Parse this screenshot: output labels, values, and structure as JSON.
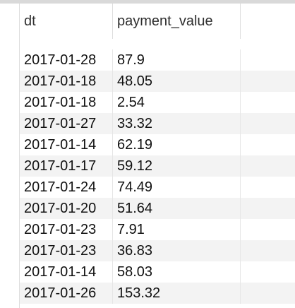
{
  "table": {
    "columns": [
      "dt",
      "payment_value"
    ],
    "rows": [
      [
        "2017-01-28",
        "87.9"
      ],
      [
        "2017-01-18",
        "48.05"
      ],
      [
        "2017-01-18",
        "2.54"
      ],
      [
        "2017-01-27",
        "33.32"
      ],
      [
        "2017-01-14",
        "62.19"
      ],
      [
        "2017-01-17",
        "59.12"
      ],
      [
        "2017-01-24",
        "74.49"
      ],
      [
        "2017-01-20",
        "51.64"
      ],
      [
        "2017-01-23",
        "7.91"
      ],
      [
        "2017-01-23",
        "36.83"
      ],
      [
        "2017-01-14",
        "58.03"
      ],
      [
        "2017-01-26",
        "153.32"
      ]
    ]
  }
}
